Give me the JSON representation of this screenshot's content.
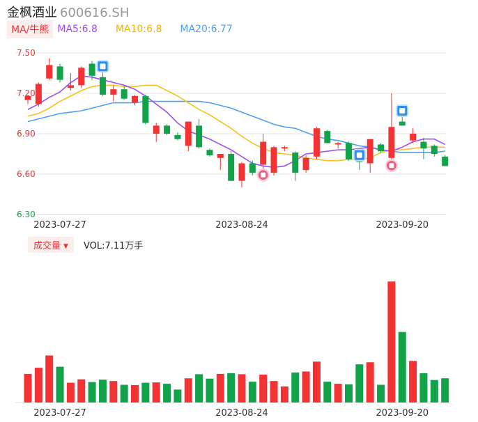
{
  "header": {
    "name": "金枫酒业",
    "code": "600616.SH"
  },
  "legend": {
    "tag": "MA/牛熊",
    "ma5": "MA5:6.8",
    "ma10": "MA10:6.8",
    "ma20": "MA20:6.77"
  },
  "volume_legend": {
    "tag": "成交量",
    "value": "VOL:7.11万手"
  },
  "colors": {
    "up": "#f33333",
    "down": "#12a34a",
    "ma5": "#a04cf0",
    "ma10": "#f5c21b",
    "ma20": "#4e9ff0",
    "axis_price": "#e3373a",
    "axis_low": "#12a34a"
  },
  "chart_data": [
    {
      "type": "candlestick",
      "y_ticks": [
        "7.50",
        "7.20",
        "6.90",
        "6.60",
        "6.30"
      ],
      "ylim": [
        6.3,
        7.5
      ],
      "x_tick_labels": [
        {
          "index": 3,
          "label": "2023-07-27"
        },
        {
          "index": 20,
          "label": "2023-08-24"
        },
        {
          "index": 35,
          "label": "2023-09-20"
        }
      ],
      "candles": [
        {
          "o": 7.15,
          "h": 7.18,
          "l": 7.12,
          "c": 7.18
        },
        {
          "o": 7.12,
          "h": 7.28,
          "l": 7.1,
          "c": 7.27
        },
        {
          "o": 7.31,
          "h": 7.46,
          "l": 7.3,
          "c": 7.41
        },
        {
          "o": 7.4,
          "h": 7.42,
          "l": 7.28,
          "c": 7.3
        },
        {
          "o": 7.24,
          "h": 7.35,
          "l": 7.22,
          "c": 7.26
        },
        {
          "o": 7.26,
          "h": 7.4,
          "l": 7.24,
          "c": 7.39
        },
        {
          "o": 7.42,
          "h": 7.44,
          "l": 7.3,
          "c": 7.33
        },
        {
          "o": 7.32,
          "h": 7.38,
          "l": 7.18,
          "c": 7.19
        },
        {
          "o": 7.19,
          "h": 7.26,
          "l": 7.14,
          "c": 7.23
        },
        {
          "o": 7.23,
          "h": 7.25,
          "l": 7.15,
          "c": 7.16
        },
        {
          "o": 7.13,
          "h": 7.19,
          "l": 7.11,
          "c": 7.18
        },
        {
          "o": 7.18,
          "h": 7.19,
          "l": 6.97,
          "c": 6.98
        },
        {
          "o": 6.9,
          "h": 6.98,
          "l": 6.84,
          "c": 6.96
        },
        {
          "o": 6.96,
          "h": 6.97,
          "l": 6.89,
          "c": 6.9
        },
        {
          "o": 6.89,
          "h": 6.91,
          "l": 6.85,
          "c": 6.86
        },
        {
          "o": 6.81,
          "h": 6.99,
          "l": 6.77,
          "c": 6.99
        },
        {
          "o": 6.96,
          "h": 7.01,
          "l": 6.79,
          "c": 6.8
        },
        {
          "o": 6.78,
          "h": 6.79,
          "l": 6.73,
          "c": 6.74
        },
        {
          "o": 6.72,
          "h": 6.75,
          "l": 6.63,
          "c": 6.75
        },
        {
          "o": 6.75,
          "h": 6.77,
          "l": 6.55,
          "c": 6.55
        },
        {
          "o": 6.55,
          "h": 6.69,
          "l": 6.5,
          "c": 6.68
        },
        {
          "o": 6.68,
          "h": 6.7,
          "l": 6.59,
          "c": 6.61
        },
        {
          "o": 6.67,
          "h": 6.9,
          "l": 6.64,
          "c": 6.84
        },
        {
          "o": 6.61,
          "h": 6.81,
          "l": 6.59,
          "c": 6.8
        },
        {
          "o": 6.79,
          "h": 6.81,
          "l": 6.77,
          "c": 6.8
        },
        {
          "o": 6.76,
          "h": 6.77,
          "l": 6.55,
          "c": 6.61
        },
        {
          "o": 6.63,
          "h": 6.74,
          "l": 6.61,
          "c": 6.72
        },
        {
          "o": 6.73,
          "h": 6.95,
          "l": 6.71,
          "c": 6.94
        },
        {
          "o": 6.92,
          "h": 6.93,
          "l": 6.83,
          "c": 6.83
        },
        {
          "o": 6.82,
          "h": 6.84,
          "l": 6.79,
          "c": 6.83
        },
        {
          "o": 6.83,
          "h": 6.84,
          "l": 6.7,
          "c": 6.71
        },
        {
          "o": 6.7,
          "h": 6.72,
          "l": 6.63,
          "c": 6.69
        },
        {
          "o": 6.68,
          "h": 6.86,
          "l": 6.61,
          "c": 6.86
        },
        {
          "o": 6.82,
          "h": 6.83,
          "l": 6.76,
          "c": 6.77
        },
        {
          "o": 6.72,
          "h": 7.2,
          "l": 6.71,
          "c": 6.95
        },
        {
          "o": 6.99,
          "h": 7.05,
          "l": 6.96,
          "c": 6.96
        },
        {
          "o": 6.85,
          "h": 6.94,
          "l": 6.83,
          "c": 6.9
        },
        {
          "o": 6.84,
          "h": 6.87,
          "l": 6.71,
          "c": 6.79
        },
        {
          "o": 6.81,
          "h": 6.82,
          "l": 6.73,
          "c": 6.75
        },
        {
          "o": 6.73,
          "h": 6.74,
          "l": 6.66,
          "c": 6.66
        }
      ],
      "ma5": [
        7.08,
        7.12,
        7.17,
        7.21,
        7.28,
        7.33,
        7.32,
        7.3,
        7.28,
        7.26,
        7.23,
        7.18,
        7.12,
        7.06,
        6.98,
        6.92,
        6.89,
        6.86,
        6.82,
        6.78,
        6.73,
        6.68,
        6.66,
        6.65,
        6.66,
        6.7,
        6.75,
        6.76,
        6.77,
        6.78,
        6.78,
        6.79,
        6.8,
        6.78,
        6.77,
        6.8,
        6.84,
        6.86,
        6.86,
        6.82
      ],
      "ma10": [
        7.03,
        7.05,
        7.09,
        7.14,
        7.18,
        7.22,
        7.25,
        7.26,
        7.26,
        7.25,
        7.25,
        7.26,
        7.26,
        7.22,
        7.18,
        7.13,
        7.08,
        7.04,
        6.99,
        6.94,
        6.88,
        6.83,
        6.79,
        6.76,
        6.75,
        6.74,
        6.72,
        6.71,
        6.7,
        6.7,
        6.71,
        6.71,
        6.72,
        6.76,
        6.78,
        6.78,
        6.79,
        6.8,
        6.8,
        6.8
      ],
      "ma20": [
        6.99,
        7.01,
        7.03,
        7.05,
        7.06,
        7.07,
        7.09,
        7.11,
        7.13,
        7.13,
        7.13,
        7.14,
        7.14,
        7.14,
        7.14,
        7.14,
        7.14,
        7.13,
        7.11,
        7.09,
        7.06,
        7.03,
        7.0,
        6.97,
        6.95,
        6.94,
        6.91,
        6.88,
        6.86,
        6.85,
        6.83,
        6.81,
        6.8,
        6.78,
        6.77,
        6.76,
        6.76,
        6.76,
        6.76,
        6.77
      ],
      "markers": [
        {
          "index": 7,
          "kind": "blue"
        },
        {
          "index": 22,
          "kind": "pink"
        },
        {
          "index": 31,
          "kind": "blue"
        },
        {
          "index": 34,
          "kind": "pink"
        },
        {
          "index": 35,
          "kind": "blue"
        }
      ]
    },
    {
      "type": "bar",
      "name": "成交量",
      "x_tick_labels": [
        {
          "index": 3,
          "label": "2023-07-27"
        },
        {
          "index": 20,
          "label": "2023-08-24"
        },
        {
          "index": 35,
          "label": "2023-09-20"
        }
      ],
      "values": [
        8.4,
        10.2,
        13.8,
        10.5,
        5.8,
        6.8,
        6.0,
        6.7,
        6.3,
        5.2,
        5.1,
        5.8,
        5.9,
        5.5,
        3.8,
        7.1,
        8.3,
        7.0,
        8.4,
        8.6,
        8.3,
        6.1,
        8.2,
        6.3,
        4.7,
        8.8,
        9.1,
        12.0,
        6.1,
        5.5,
        5.3,
        11.2,
        11.8,
        5.2,
        35.5,
        20.7,
        12.2,
        8.6,
        6.6,
        7.11
      ],
      "ylim": [
        0,
        38
      ]
    }
  ]
}
